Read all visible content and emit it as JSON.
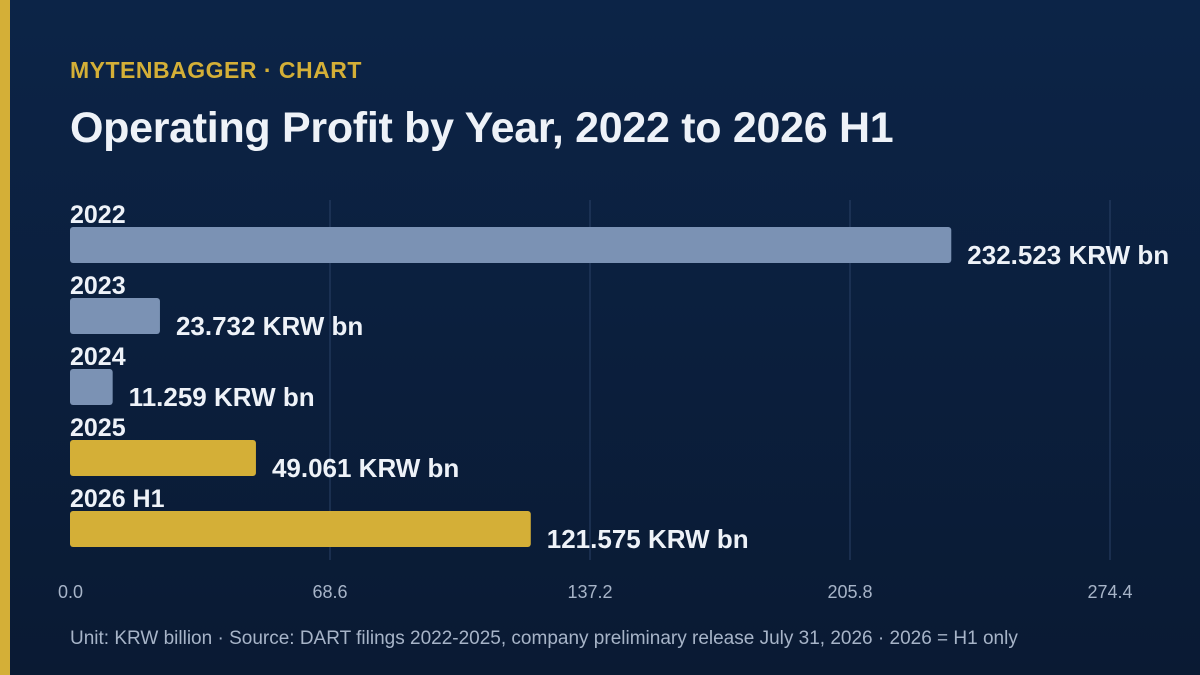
{
  "header": {
    "brand": "MYTENBAGGER · CHART",
    "title": "Operating Profit by Year, 2022 to 2026 H1"
  },
  "footer": {
    "note": "Unit: KRW billion · Source: DART filings 2022-2025, company preliminary release July 31, 2026 · 2026 = H1 only"
  },
  "colors": {
    "background": "#0c2447",
    "accent": "#d4af37",
    "bar_default": "#7b92b4",
    "bar_highlight": "#d4af37",
    "text": "#eef2f8",
    "axis_text": "#a7b4c8",
    "grid": "#2a4166"
  },
  "chart_data": {
    "type": "bar",
    "orientation": "horizontal",
    "categories": [
      "2022",
      "2023",
      "2024",
      "2025",
      "2026 H1"
    ],
    "values": [
      232.523,
      23.732,
      11.259,
      49.061,
      121.575
    ],
    "value_labels": [
      "232.523 KRW bn",
      "23.732 KRW bn",
      "11.259 KRW bn",
      "49.061 KRW bn",
      "121.575 KRW bn"
    ],
    "highlighted": [
      false,
      false,
      false,
      true,
      true
    ],
    "title": "Operating Profit by Year, 2022 to 2026 H1",
    "xlim": [
      0,
      274.4
    ],
    "xticks": [
      0.0,
      68.6,
      137.2,
      205.8,
      274.4
    ],
    "xtick_labels": [
      "0.0",
      "68.6",
      "137.2",
      "205.8",
      "274.4"
    ],
    "grid": true,
    "legend": "none"
  }
}
